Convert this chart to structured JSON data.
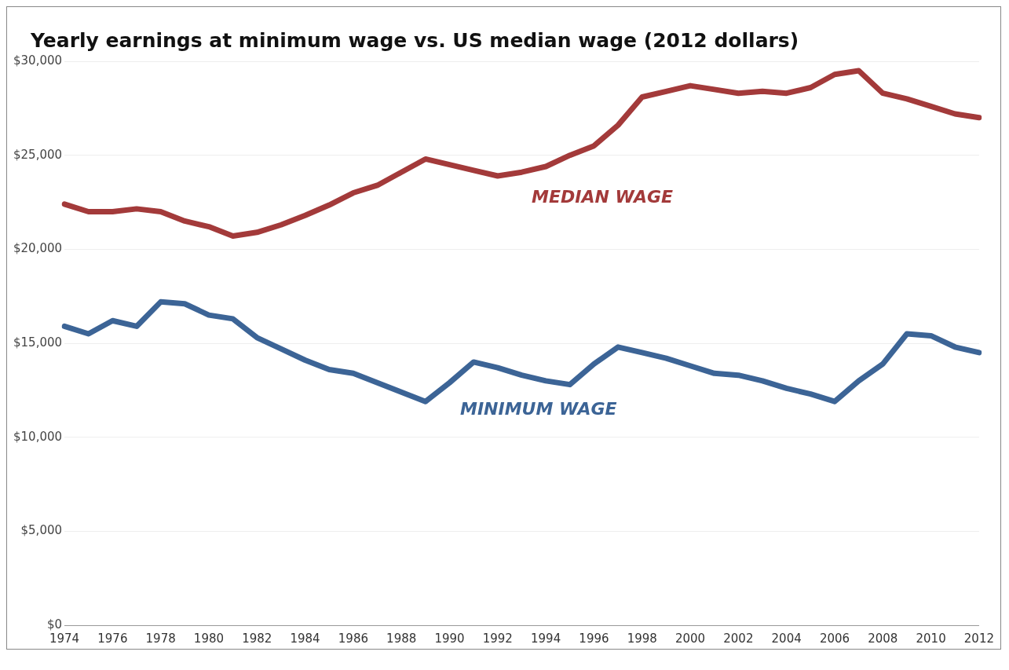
{
  "chart_data": {
    "type": "line",
    "title": "Yearly earnings at minimum wage vs. US median wage (2012 dollars)",
    "categories": [
      "1974",
      null,
      "1976",
      null,
      "1978",
      null,
      "1980",
      null,
      "1982",
      null,
      "1984",
      null,
      "1986",
      null,
      "1988",
      null,
      "1990",
      null,
      "1992",
      null,
      "1994",
      null,
      "1996",
      null,
      "1998",
      null,
      "2000",
      null,
      "2002",
      null,
      "2004",
      null,
      "2006",
      null,
      "2008",
      null,
      "2010",
      null,
      "2012"
    ],
    "series": [
      {
        "name": "MEDIAN WAGE",
        "color": "#a33a3a",
        "values": [
          22400,
          22000,
          22000,
          22150,
          22000,
          21500,
          21200,
          20700,
          20900,
          21300,
          21800,
          22350,
          23000,
          23400,
          24100,
          24800,
          24500,
          24200,
          23900,
          24100,
          24400,
          25000,
          25500,
          26600,
          28100,
          28400,
          28700,
          28500,
          28300,
          28400,
          28300,
          28600,
          29300,
          29500,
          28300,
          28000,
          27600,
          27200,
          27000
        ]
      },
      {
        "name": "MINIMUM WAGE",
        "color": "#3c6496",
        "values": [
          15900,
          15500,
          16200,
          15900,
          17200,
          17100,
          16500,
          16300,
          15300,
          14700,
          14100,
          13600,
          13400,
          12900,
          12400,
          11900,
          12900,
          14000,
          13700,
          13300,
          13000,
          12800,
          13900,
          14800,
          14500,
          14200,
          13800,
          13400,
          13300,
          13000,
          12600,
          12300,
          11900,
          13000,
          13900,
          15500,
          15400,
          14800,
          14500
        ]
      }
    ],
    "ylim": [
      0,
      30000
    ],
    "yticks": [
      {
        "value": 0,
        "label": "$0"
      },
      {
        "value": 5000,
        "label": "$5,000"
      },
      {
        "value": 10000,
        "label": "$10,000"
      },
      {
        "value": 15000,
        "label": "$15,000"
      },
      {
        "value": 20000,
        "label": "$20,000"
      },
      {
        "value": 25000,
        "label": "$25,000"
      },
      {
        "value": 30000,
        "label": "$30,000"
      }
    ],
    "grid": "y",
    "legend": false,
    "marker": "none",
    "line_style": "solid"
  }
}
